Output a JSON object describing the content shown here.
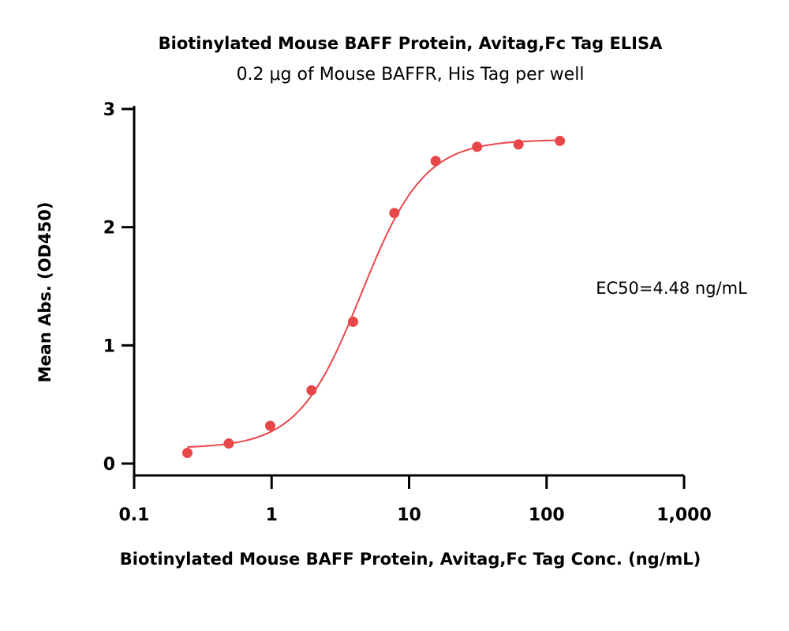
{
  "chart_data": {
    "type": "scatter",
    "title": "Biotinylated Mouse BAFF Protein, Avitag,Fc Tag ELISA",
    "subtitle": "0.2 μg of Mouse BAFFR, His Tag per well",
    "xlabel": "Biotinylated Mouse BAFF Protein, Avitag,Fc Tag Conc. (ng/mL)",
    "ylabel": "Mean Abs. (OD450)",
    "xscale": "log",
    "xlim": [
      0.1,
      1000
    ],
    "ylim": [
      0,
      3
    ],
    "x_ticks": [
      0.1,
      1,
      10,
      100,
      1000
    ],
    "x_tick_labels": [
      "0.1",
      "1",
      "10",
      "100",
      "1,000"
    ],
    "y_ticks": [
      0,
      1,
      2,
      3
    ],
    "y_tick_labels": [
      "0",
      "1",
      "2",
      "3"
    ],
    "grid": false,
    "series": [
      {
        "x": [
          0.244,
          0.488,
          0.977,
          1.95,
          3.91,
          7.81,
          15.6,
          31.25,
          62.5,
          125
        ],
        "y": [
          0.09,
          0.17,
          0.32,
          0.62,
          1.2,
          2.12,
          2.56,
          2.68,
          2.7,
          2.73
        ],
        "fit": "4PL",
        "color": "#e8474a"
      }
    ],
    "annotations": [
      "EC50=4.48 ng/mL"
    ]
  }
}
